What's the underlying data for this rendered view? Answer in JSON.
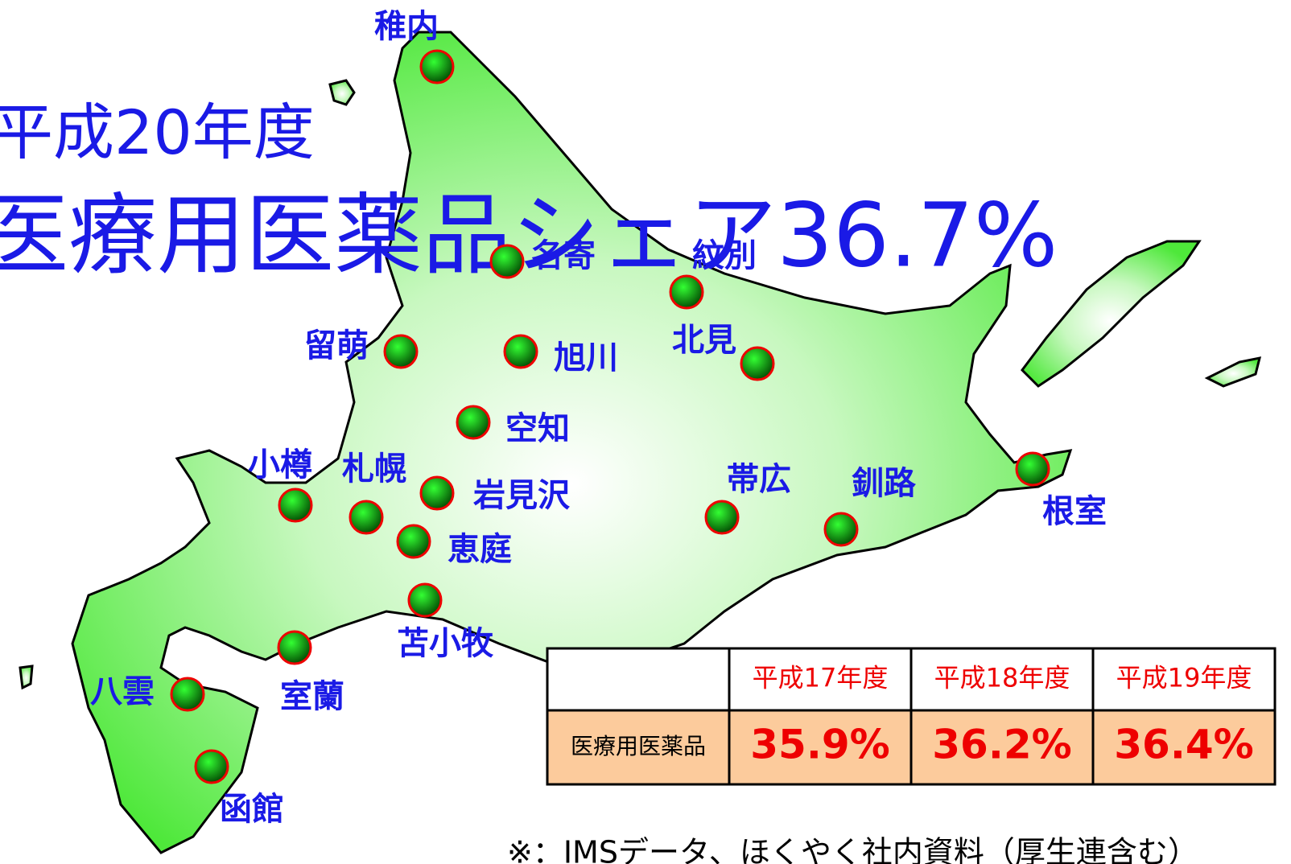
{
  "title": "平成20年度",
  "headline": "医療用医薬品シェア36.7%",
  "cities": [
    {
      "name": "稚内"
    },
    {
      "name": "名寄"
    },
    {
      "name": "紋別"
    },
    {
      "name": "留萌"
    },
    {
      "name": "旭川"
    },
    {
      "name": "北見"
    },
    {
      "name": "空知"
    },
    {
      "name": "小樽"
    },
    {
      "name": "札幌"
    },
    {
      "name": "岩見沢"
    },
    {
      "name": "恵庭"
    },
    {
      "name": "帯広"
    },
    {
      "name": "釧路"
    },
    {
      "name": "根室"
    },
    {
      "name": "苫小牧"
    },
    {
      "name": "室蘭"
    },
    {
      "name": "八雲"
    },
    {
      "name": "函館"
    }
  ],
  "table": {
    "columns": [
      "平成17年度",
      "平成18年度",
      "平成19年度"
    ],
    "row_label": "医療用医薬品",
    "values": [
      "35.9%",
      "36.2%",
      "36.4%"
    ]
  },
  "note": "※：IMSデータ、ほくやく社内資料（厚生連含む）"
}
